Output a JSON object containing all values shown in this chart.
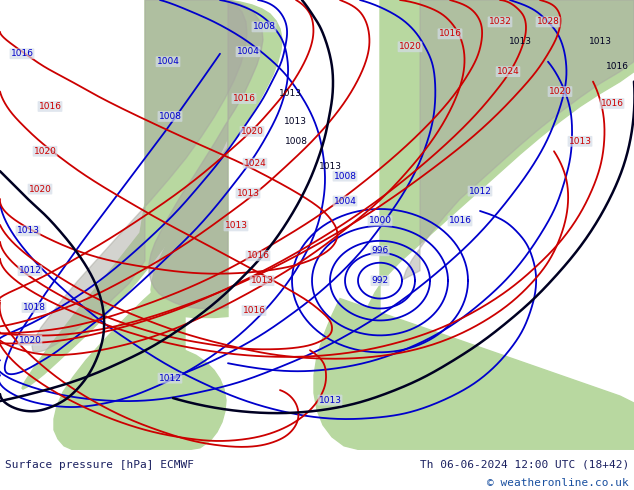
{
  "title_left": "Surface pressure [hPa] ECMWF",
  "title_right": "Th 06-06-2024 12:00 UTC (18+42)",
  "copyright": "© weatheronline.co.uk",
  "bg_color": "#d4dce8",
  "land_color": "#b8d8a0",
  "gray_color": "#a8a8a0",
  "figsize": [
    6.34,
    4.9
  ],
  "dpi": 100,
  "footer_color": "#1a2060",
  "copyright_color": "#1a50a0",
  "blue": "#0000cc",
  "red": "#cc0000",
  "black": "#000022"
}
